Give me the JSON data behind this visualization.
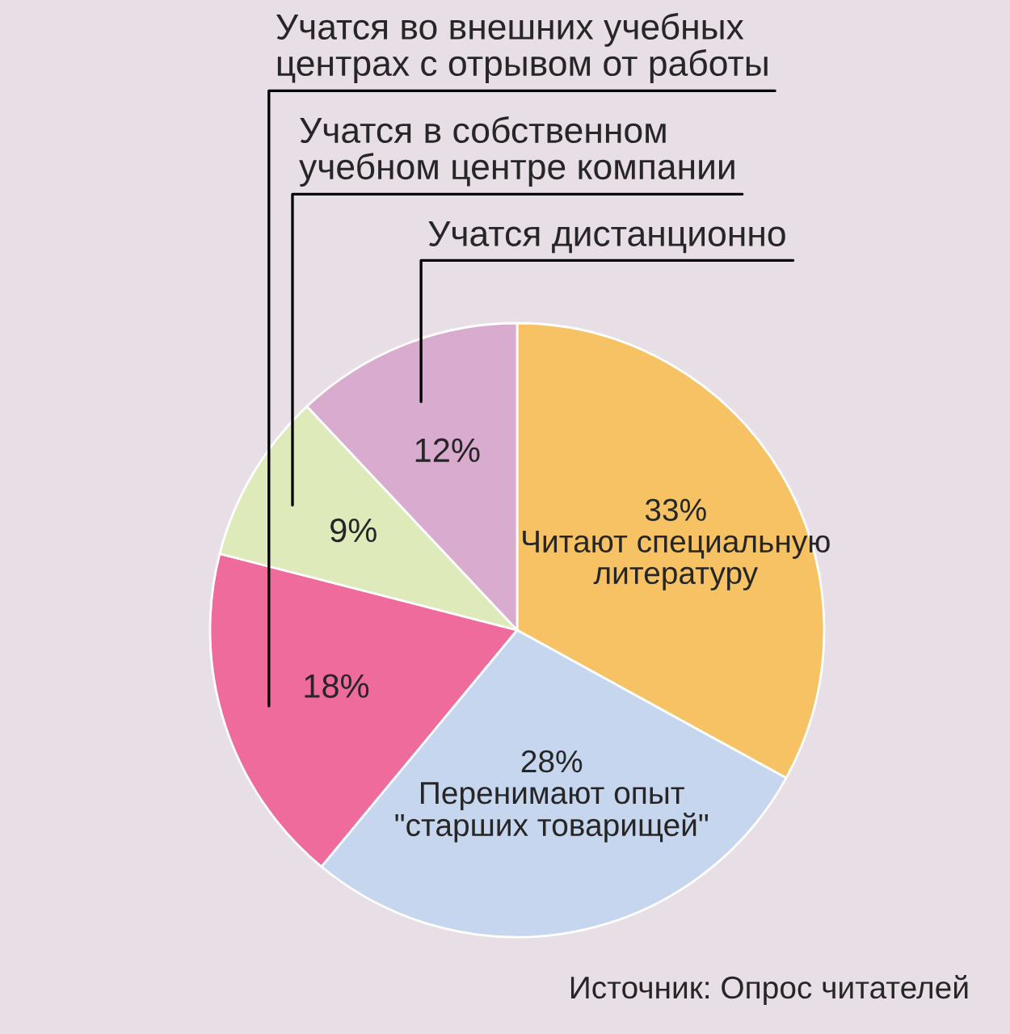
{
  "chart_data": {
    "type": "pie",
    "categories": [
      "Читают специальную литературу",
      "Перенимают опыт \"старших товарищей\"",
      "Учатся во внешних учебных центрах с отрывом от работы",
      "Учатся в собственном учебном центре компании",
      "Учатся дистанционно"
    ],
    "values": [
      33,
      28,
      18,
      9,
      12
    ],
    "value_labels": [
      "33%",
      "28%",
      "18%",
      "9%",
      "12%"
    ],
    "colors": [
      "#f6c264",
      "#c6d6ee",
      "#ee6b9c",
      "#dfeabb",
      "#d8abcf"
    ],
    "annotations": [
      "Источник: Опрос читателей"
    ]
  }
}
